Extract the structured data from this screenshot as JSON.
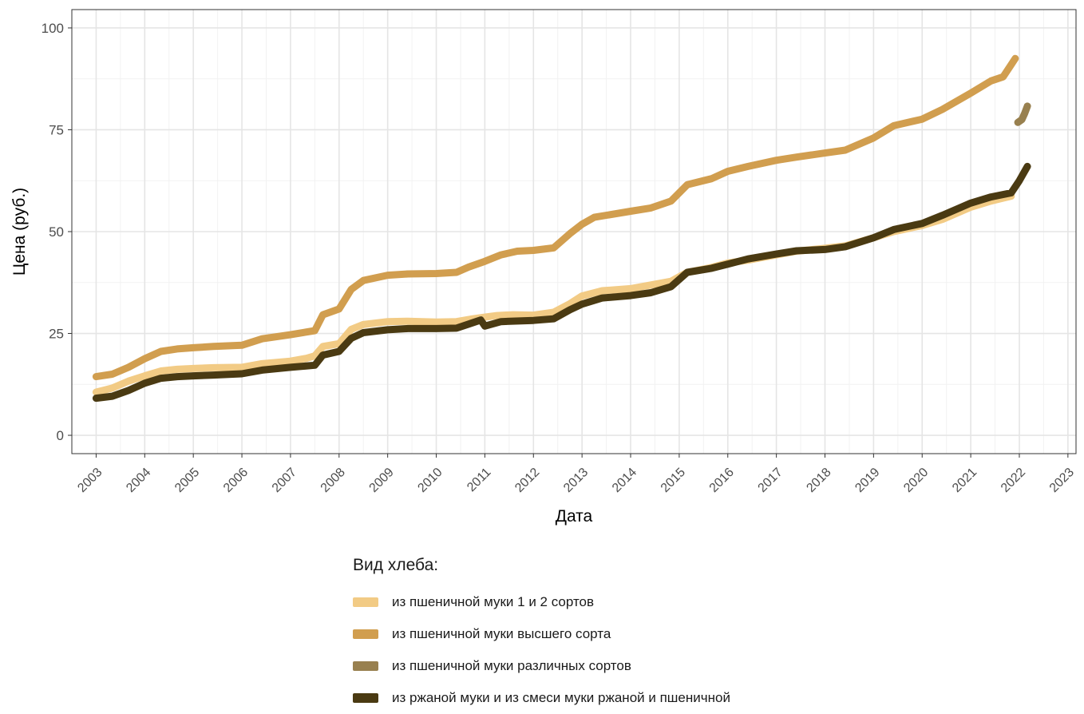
{
  "chart_data": {
    "type": "line",
    "title": "",
    "xlabel": "Дата",
    "ylabel": "Цена (руб.)",
    "xlim": [
      "2002-07-01",
      "2023-03-01"
    ],
    "ylim": [
      -4.5,
      104.5
    ],
    "x_ticks": [
      "2003",
      "2004",
      "2005",
      "2006",
      "2007",
      "2008",
      "2009",
      "2010",
      "2011",
      "2012",
      "2013",
      "2014",
      "2015",
      "2016",
      "2017",
      "2018",
      "2019",
      "2020",
      "2021",
      "2022",
      "2023"
    ],
    "y_ticks": [
      0,
      25,
      50,
      75,
      100
    ],
    "y_tick_labels": [
      "0",
      "25",
      "50",
      "75",
      "100"
    ],
    "grid": true,
    "legend": {
      "title": "Вид хлеба:",
      "placement": "bottom"
    },
    "series": [
      {
        "name": "из пшеничной муки 1 и 2 сортов",
        "color": "#F2CB85",
        "points": [
          [
            "2003-01-01",
            10.6
          ],
          [
            "2003-05-01",
            11.6
          ],
          [
            "2003-09-01",
            13.3
          ],
          [
            "2004-01-01",
            14.6
          ],
          [
            "2004-05-01",
            15.8
          ],
          [
            "2004-09-01",
            16.2
          ],
          [
            "2005-01-01",
            16.4
          ],
          [
            "2005-06-01",
            16.6
          ],
          [
            "2006-01-01",
            16.7
          ],
          [
            "2006-06-01",
            17.6
          ],
          [
            "2007-01-01",
            18.2
          ],
          [
            "2007-05-01",
            18.9
          ],
          [
            "2007-07-01",
            19.5
          ],
          [
            "2007-09-01",
            21.8
          ],
          [
            "2008-01-01",
            22.5
          ],
          [
            "2008-04-01",
            26.0
          ],
          [
            "2008-07-01",
            27.2
          ],
          [
            "2009-01-01",
            27.9
          ],
          [
            "2009-06-01",
            28.0
          ],
          [
            "2010-01-01",
            27.8
          ],
          [
            "2010-06-01",
            27.9
          ],
          [
            "2010-10-01",
            28.6
          ],
          [
            "2011-01-01",
            29.0
          ],
          [
            "2011-04-01",
            29.4
          ],
          [
            "2011-08-01",
            29.6
          ],
          [
            "2012-01-01",
            29.5
          ],
          [
            "2012-06-01",
            30.2
          ],
          [
            "2012-10-01",
            32.3
          ],
          [
            "2013-01-01",
            34.2
          ],
          [
            "2013-06-01",
            35.5
          ],
          [
            "2014-01-01",
            36.0
          ],
          [
            "2014-06-01",
            36.9
          ],
          [
            "2014-11-01",
            37.8
          ],
          [
            "2015-03-01",
            40.0
          ],
          [
            "2015-09-01",
            41.2
          ],
          [
            "2016-01-01",
            42.3
          ],
          [
            "2016-06-01",
            43.0
          ],
          [
            "2017-01-01",
            44.3
          ],
          [
            "2017-06-01",
            45.2
          ],
          [
            "2018-01-01",
            45.9
          ],
          [
            "2018-06-01",
            46.5
          ],
          [
            "2019-01-01",
            48.5
          ],
          [
            "2019-06-01",
            50.0
          ],
          [
            "2020-01-01",
            51.5
          ],
          [
            "2020-06-01",
            53.0
          ],
          [
            "2021-01-01",
            56.0
          ],
          [
            "2021-06-01",
            57.5
          ],
          [
            "2021-11-01",
            58.7
          ]
        ]
      },
      {
        "name": "из пшеничной муки высшего сорта",
        "color": "#D19E4F",
        "points": [
          [
            "2003-01-01",
            14.4
          ],
          [
            "2003-05-01",
            15.0
          ],
          [
            "2003-09-01",
            16.7
          ],
          [
            "2004-01-01",
            18.8
          ],
          [
            "2004-05-01",
            20.6
          ],
          [
            "2004-09-01",
            21.2
          ],
          [
            "2005-01-01",
            21.5
          ],
          [
            "2005-06-01",
            21.8
          ],
          [
            "2006-01-01",
            22.1
          ],
          [
            "2006-06-01",
            23.7
          ],
          [
            "2007-01-01",
            24.7
          ],
          [
            "2007-07-01",
            25.7
          ],
          [
            "2007-09-01",
            29.6
          ],
          [
            "2008-01-01",
            31.0
          ],
          [
            "2008-04-01",
            35.8
          ],
          [
            "2008-07-01",
            38.0
          ],
          [
            "2009-01-01",
            39.3
          ],
          [
            "2009-06-01",
            39.6
          ],
          [
            "2010-01-01",
            39.7
          ],
          [
            "2010-06-01",
            40.0
          ],
          [
            "2010-09-01",
            41.3
          ],
          [
            "2011-01-01",
            42.7
          ],
          [
            "2011-05-01",
            44.3
          ],
          [
            "2011-09-01",
            45.2
          ],
          [
            "2012-01-01",
            45.4
          ],
          [
            "2012-06-01",
            46.0
          ],
          [
            "2012-10-01",
            49.5
          ],
          [
            "2013-01-01",
            51.8
          ],
          [
            "2013-04-01",
            53.5
          ],
          [
            "2014-01-01",
            55.0
          ],
          [
            "2014-06-01",
            55.8
          ],
          [
            "2014-11-01",
            57.5
          ],
          [
            "2015-03-01",
            61.5
          ],
          [
            "2015-09-01",
            63.0
          ],
          [
            "2016-01-01",
            64.8
          ],
          [
            "2016-06-01",
            66.0
          ],
          [
            "2017-01-01",
            67.5
          ],
          [
            "2017-06-01",
            68.3
          ],
          [
            "2018-01-01",
            69.3
          ],
          [
            "2018-06-01",
            70.0
          ],
          [
            "2019-01-01",
            73.0
          ],
          [
            "2019-06-01",
            76.0
          ],
          [
            "2020-01-01",
            77.6
          ],
          [
            "2020-06-01",
            80.0
          ],
          [
            "2021-01-01",
            84.0
          ],
          [
            "2021-06-01",
            87.0
          ],
          [
            "2021-09-01",
            88.0
          ],
          [
            "2021-12-01",
            92.5
          ]
        ]
      },
      {
        "name": "из пшеничной муки различных сортов",
        "color": "#98804F",
        "points": [
          [
            "2021-12-20",
            76.8
          ],
          [
            "2022-01-20",
            77.5
          ],
          [
            "2022-02-10",
            79.0
          ],
          [
            "2022-03-01",
            80.8
          ]
        ]
      },
      {
        "name": "из ржаной муки и из смеси муки ржаной и пшеничной",
        "color": "#4A3A12",
        "points": [
          [
            "2003-01-01",
            9.1
          ],
          [
            "2003-05-01",
            9.6
          ],
          [
            "2003-09-01",
            11.0
          ],
          [
            "2004-01-01",
            12.8
          ],
          [
            "2004-05-01",
            14.0
          ],
          [
            "2004-09-01",
            14.4
          ],
          [
            "2005-01-01",
            14.6
          ],
          [
            "2005-06-01",
            14.8
          ],
          [
            "2006-01-01",
            15.1
          ],
          [
            "2006-06-01",
            16.0
          ],
          [
            "2007-01-01",
            16.7
          ],
          [
            "2007-07-01",
            17.2
          ],
          [
            "2007-09-01",
            19.7
          ],
          [
            "2008-01-01",
            20.6
          ],
          [
            "2008-04-01",
            23.8
          ],
          [
            "2008-07-01",
            25.2
          ],
          [
            "2009-01-01",
            25.9
          ],
          [
            "2009-06-01",
            26.2
          ],
          [
            "2010-01-01",
            26.2
          ],
          [
            "2010-06-01",
            26.3
          ],
          [
            "2010-09-01",
            27.3
          ],
          [
            "2010-12-01",
            28.3
          ],
          [
            "2011-01-01",
            26.8
          ],
          [
            "2011-05-01",
            27.9
          ],
          [
            "2012-01-01",
            28.2
          ],
          [
            "2012-06-01",
            28.6
          ],
          [
            "2012-10-01",
            30.8
          ],
          [
            "2013-01-01",
            32.2
          ],
          [
            "2013-06-01",
            33.7
          ],
          [
            "2014-01-01",
            34.3
          ],
          [
            "2014-06-01",
            35.0
          ],
          [
            "2014-11-01",
            36.5
          ],
          [
            "2015-03-01",
            40.0
          ],
          [
            "2015-09-01",
            41.0
          ],
          [
            "2016-01-01",
            42.0
          ],
          [
            "2016-06-01",
            43.3
          ],
          [
            "2017-01-01",
            44.5
          ],
          [
            "2017-06-01",
            45.3
          ],
          [
            "2018-01-01",
            45.6
          ],
          [
            "2018-06-01",
            46.3
          ],
          [
            "2019-01-01",
            48.5
          ],
          [
            "2019-06-01",
            50.5
          ],
          [
            "2020-01-01",
            52.0
          ],
          [
            "2020-06-01",
            54.0
          ],
          [
            "2021-01-01",
            57.0
          ],
          [
            "2021-06-01",
            58.5
          ],
          [
            "2021-11-01",
            59.5
          ],
          [
            "2022-01-01",
            62.5
          ],
          [
            "2022-03-01",
            66.0
          ]
        ]
      }
    ]
  }
}
